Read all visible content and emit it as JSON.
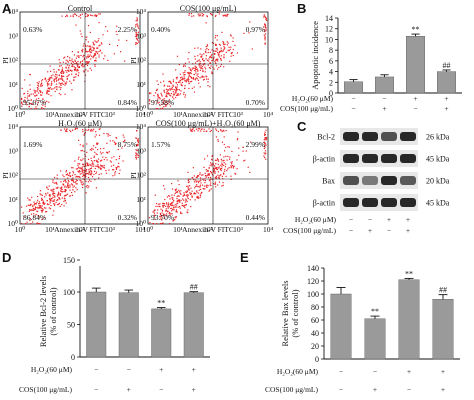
{
  "panels": {
    "A": "A",
    "B": "B",
    "C": "C",
    "D": "D",
    "E": "E"
  },
  "colors": {
    "bar": "#9a9a9a",
    "dots": "#e8262a",
    "axis": "#111111",
    "band": "#1e1e1e"
  },
  "flow": {
    "y_axis_label": "PI",
    "x_axis_label": "Annexin-V FITC",
    "x_ticks": [
      "10⁰",
      "10¹",
      "10²",
      "10³",
      "10⁴"
    ],
    "y_ticks": [
      "10⁰",
      "10¹",
      "10²",
      "10³",
      "10⁴"
    ],
    "plots": [
      {
        "title": "Control",
        "q": {
          "ul": "0.63%",
          "ur": "2.25%",
          "ll": "95.67%",
          "lr": "0.84%"
        }
      },
      {
        "title": "COS(100 μg/mL)",
        "q": {
          "ul": "0.40%",
          "ur": "0.97%",
          "ll": "97.58%",
          "lr": "0.70%"
        }
      },
      {
        "title": "H₂O₂(60 μM)",
        "q": {
          "ul": "1.69%",
          "ur": "8.75%",
          "ll": "86.84%",
          "lr": "0.32%"
        }
      },
      {
        "title": "COS(100 μg/mL)+H₂O₂(60 μM)",
        "q": {
          "ul": "1.57%",
          "ur": "2.99%",
          "ll": "93.70%",
          "lr": "0.44%"
        }
      }
    ]
  },
  "western": {
    "rows": [
      {
        "label": "Bcl-2",
        "kda": "26 kDa"
      },
      {
        "label": "β-actin",
        "kda": "45 kDa"
      },
      {
        "label": "Bax",
        "kda": "20 kDa"
      },
      {
        "label": "β-actin",
        "kda": "45 kDa"
      }
    ],
    "treat_labels": [
      "H₂O₂(60 μM)",
      "COS(100 μg/mL)"
    ],
    "h2o2_signs": [
      "−",
      "−",
      "+",
      "+"
    ],
    "cos_signs": [
      "−",
      "+",
      "−",
      "+"
    ]
  },
  "chart_data": [
    {
      "type": "bar",
      "panel": "B",
      "categories": [
        "1",
        "2",
        "3",
        "4"
      ],
      "values": [
        2.1,
        3.0,
        10.6,
        4.0
      ],
      "errors": [
        0.4,
        0.4,
        0.4,
        0.3
      ],
      "annotations": [
        "",
        "",
        "**",
        "##"
      ],
      "ylabel": "Apoptotic incidence",
      "ylim": [
        0,
        14
      ],
      "yticks": [
        "0",
        "2",
        "4",
        "6",
        "8",
        "10",
        "12",
        "14"
      ],
      "row_labels": [
        "H₂O₂(60 μM)",
        "COS(100 μg/mL)"
      ],
      "h2o2_signs": [
        "−",
        "−",
        "+",
        "+"
      ],
      "cos_signs": [
        "−",
        "+",
        "−",
        "+"
      ]
    },
    {
      "type": "bar",
      "panel": "D",
      "categories": [
        "1",
        "2",
        "3",
        "4"
      ],
      "values": [
        100,
        99,
        74,
        99
      ],
      "errors": [
        6,
        4,
        2,
        1.5
      ],
      "annotations": [
        "",
        "",
        "**",
        "##"
      ],
      "ylabel": "Relative Bcl-2 levels\n(% of control)",
      "ylim": [
        0,
        140
      ],
      "yticks": [
        "0",
        "50",
        "100",
        "150"
      ],
      "row_labels": [
        "H₂O₂(60 μM)",
        "COS(100 μg/mL)"
      ],
      "h2o2_signs": [
        "−",
        "−",
        "+",
        "+"
      ],
      "cos_signs": [
        "−",
        "+",
        "−",
        "+"
      ]
    },
    {
      "type": "bar",
      "panel": "E",
      "categories": [
        "1",
        "2",
        "3",
        "4"
      ],
      "values": [
        100,
        62,
        122,
        92
      ],
      "errors": [
        10,
        4,
        2,
        7
      ],
      "annotations": [
        "",
        "**",
        "**",
        "##"
      ],
      "ylabel": "Relative Bax levels\n(% of control)",
      "ylim": [
        0,
        140
      ],
      "yticks": [
        "0",
        "20",
        "40",
        "60",
        "80",
        "100",
        "120",
        "140"
      ],
      "row_labels": [
        "H₂O₂(60 μM)",
        "COS(100 μg/mL)"
      ],
      "h2o2_signs": [
        "−",
        "−",
        "+",
        "+"
      ],
      "cos_signs": [
        "−",
        "+",
        "−",
        "+"
      ]
    }
  ]
}
